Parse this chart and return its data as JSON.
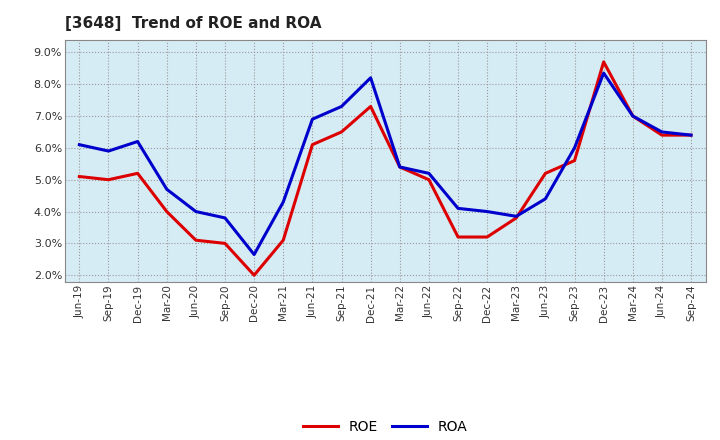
{
  "title": "[3648]  Trend of ROE and ROA",
  "labels": [
    "Jun-19",
    "Sep-19",
    "Dec-19",
    "Mar-20",
    "Jun-20",
    "Sep-20",
    "Dec-20",
    "Mar-21",
    "Jun-21",
    "Sep-21",
    "Dec-21",
    "Mar-22",
    "Jun-22",
    "Sep-22",
    "Dec-22",
    "Mar-23",
    "Jun-23",
    "Sep-23",
    "Dec-23",
    "Mar-24",
    "Jun-24",
    "Sep-24"
  ],
  "ROE": [
    5.1,
    5.0,
    5.2,
    4.0,
    3.1,
    3.0,
    2.0,
    3.1,
    6.1,
    6.5,
    7.3,
    5.4,
    5.0,
    3.2,
    3.2,
    3.8,
    5.2,
    5.6,
    8.7,
    7.0,
    6.4,
    6.4
  ],
  "ROA": [
    6.1,
    5.9,
    6.2,
    4.7,
    4.0,
    3.8,
    2.65,
    4.3,
    6.9,
    7.3,
    8.2,
    5.4,
    5.2,
    4.1,
    4.0,
    3.85,
    4.4,
    6.0,
    8.35,
    7.0,
    6.5,
    6.4
  ],
  "roe_color": "#dd0000",
  "roa_color": "#0000cc",
  "bg_color": "#ffffff",
  "plot_bg_color": "#d6ecf5",
  "grid_color": "#999999",
  "ylim": [
    1.8,
    9.4
  ],
  "yticks": [
    2.0,
    3.0,
    4.0,
    5.0,
    6.0,
    7.0,
    8.0,
    9.0
  ],
  "line_width": 2.2
}
